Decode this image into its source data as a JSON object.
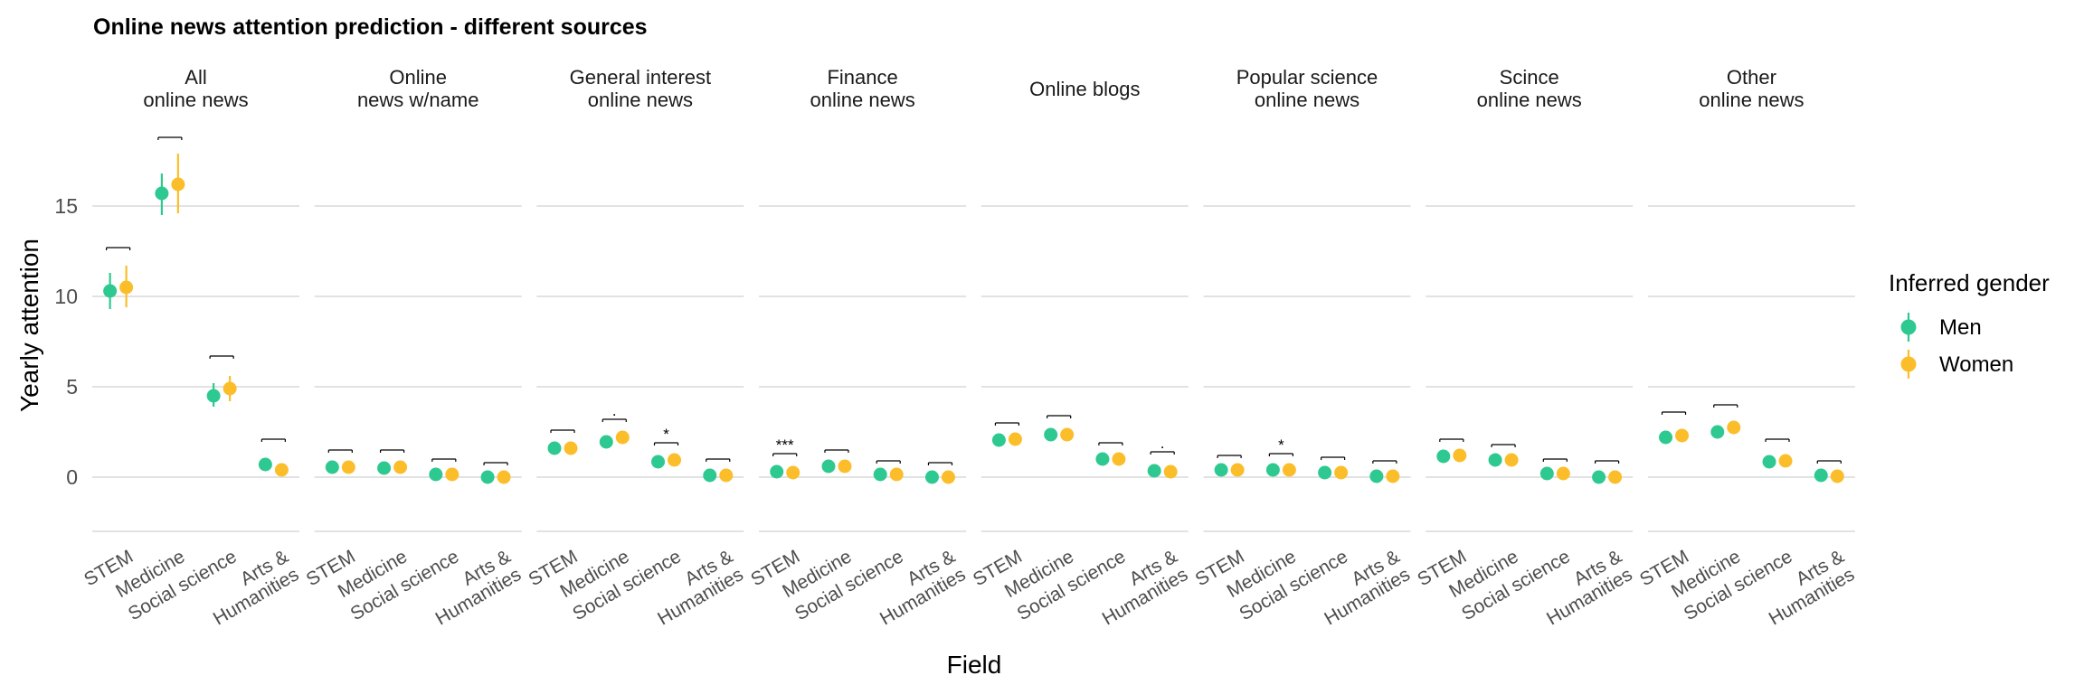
{
  "chart_data": {
    "type": "scatter",
    "title": "Online news attention prediction - different sources",
    "xlabel": "Field",
    "ylabel": "Yearly attention",
    "ylim": [
      -3,
      19.5
    ],
    "yticks": [
      0,
      5,
      10,
      15
    ],
    "grid": true,
    "legend": {
      "title": "Inferred gender",
      "placement": "right",
      "entries": [
        {
          "name": "Men",
          "color": "#2ec990"
        },
        {
          "name": "Women",
          "color": "#fbbe2a"
        }
      ]
    },
    "categories": [
      "STEM",
      "Medicine",
      "Social science",
      "Arts & Humanities"
    ],
    "category_lines": [
      [
        "STEM"
      ],
      [
        "Medicine"
      ],
      [
        "Social science"
      ],
      [
        "Arts &",
        "Humanities"
      ]
    ],
    "panels": [
      {
        "title_lines": [
          "All",
          "online news"
        ],
        "men": [
          {
            "y": 10.3,
            "lo": 9.3,
            "hi": 11.3
          },
          {
            "y": 15.7,
            "lo": 14.5,
            "hi": 16.8
          },
          {
            "y": 4.5,
            "lo": 3.9,
            "hi": 5.2
          },
          {
            "y": 0.7,
            "lo": 0.5,
            "hi": 0.9
          }
        ],
        "women": [
          {
            "y": 10.5,
            "lo": 9.4,
            "hi": 11.7
          },
          {
            "y": 16.2,
            "lo": 14.6,
            "hi": 17.9
          },
          {
            "y": 4.9,
            "lo": 4.2,
            "hi": 5.6
          },
          {
            "y": 0.4,
            "lo": 0.2,
            "hi": 0.6
          }
        ],
        "bracket_y": [
          12.7,
          18.8,
          6.7,
          2.1
        ],
        "sig": [
          "",
          "",
          "",
          ""
        ]
      },
      {
        "title_lines": [
          "Online",
          "news w/name"
        ],
        "men": [
          {
            "y": 0.55,
            "lo": 0.45,
            "hi": 0.65
          },
          {
            "y": 0.5,
            "lo": 0.4,
            "hi": 0.6
          },
          {
            "y": 0.15,
            "lo": 0.1,
            "hi": 0.2
          },
          {
            "y": 0.0,
            "lo": -0.05,
            "hi": 0.05
          }
        ],
        "women": [
          {
            "y": 0.55,
            "lo": 0.45,
            "hi": 0.65
          },
          {
            "y": 0.55,
            "lo": 0.45,
            "hi": 0.65
          },
          {
            "y": 0.15,
            "lo": 0.1,
            "hi": 0.2
          },
          {
            "y": 0.0,
            "lo": -0.05,
            "hi": 0.05
          }
        ],
        "bracket_y": [
          1.5,
          1.5,
          1.0,
          0.8
        ],
        "sig": [
          "",
          "",
          "",
          ""
        ]
      },
      {
        "title_lines": [
          "General interest",
          "online news"
        ],
        "men": [
          {
            "y": 1.6,
            "lo": 1.45,
            "hi": 1.75
          },
          {
            "y": 1.95,
            "lo": 1.8,
            "hi": 2.1
          },
          {
            "y": 0.85,
            "lo": 0.75,
            "hi": 0.95
          },
          {
            "y": 0.1,
            "lo": 0.05,
            "hi": 0.15
          }
        ],
        "women": [
          {
            "y": 1.6,
            "lo": 1.45,
            "hi": 1.75
          },
          {
            "y": 2.2,
            "lo": 2.0,
            "hi": 2.4
          },
          {
            "y": 0.95,
            "lo": 0.85,
            "hi": 1.05
          },
          {
            "y": 0.1,
            "lo": 0.05,
            "hi": 0.15
          }
        ],
        "bracket_y": [
          2.6,
          3.2,
          1.9,
          1.0
        ],
        "sig": [
          "",
          ".",
          "*",
          ""
        ]
      },
      {
        "title_lines": [
          "Finance",
          "online news"
        ],
        "men": [
          {
            "y": 0.3,
            "lo": 0.25,
            "hi": 0.35
          },
          {
            "y": 0.6,
            "lo": 0.5,
            "hi": 0.7
          },
          {
            "y": 0.15,
            "lo": 0.1,
            "hi": 0.2
          },
          {
            "y": 0.0,
            "lo": -0.05,
            "hi": 0.05
          }
        ],
        "women": [
          {
            "y": 0.25,
            "lo": 0.2,
            "hi": 0.3
          },
          {
            "y": 0.6,
            "lo": 0.5,
            "hi": 0.7
          },
          {
            "y": 0.15,
            "lo": 0.1,
            "hi": 0.2
          },
          {
            "y": 0.0,
            "lo": -0.05,
            "hi": 0.05
          }
        ],
        "bracket_y": [
          1.3,
          1.5,
          0.9,
          0.8
        ],
        "sig": [
          "***",
          "",
          "",
          ""
        ]
      },
      {
        "title_lines": [
          "Online blogs"
        ],
        "men": [
          {
            "y": 2.05,
            "lo": 1.9,
            "hi": 2.2
          },
          {
            "y": 2.35,
            "lo": 2.2,
            "hi": 2.5
          },
          {
            "y": 1.0,
            "lo": 0.9,
            "hi": 1.1
          },
          {
            "y": 0.35,
            "lo": 0.3,
            "hi": 0.4
          }
        ],
        "women": [
          {
            "y": 2.1,
            "lo": 1.95,
            "hi": 2.25
          },
          {
            "y": 2.35,
            "lo": 2.2,
            "hi": 2.5
          },
          {
            "y": 1.0,
            "lo": 0.9,
            "hi": 1.1
          },
          {
            "y": 0.3,
            "lo": 0.25,
            "hi": 0.35
          }
        ],
        "bracket_y": [
          3.0,
          3.4,
          1.9,
          1.4
        ],
        "sig": [
          "",
          "",
          "",
          "."
        ]
      },
      {
        "title_lines": [
          "Popular science",
          "online news"
        ],
        "men": [
          {
            "y": 0.4,
            "lo": 0.35,
            "hi": 0.45
          },
          {
            "y": 0.4,
            "lo": 0.35,
            "hi": 0.45
          },
          {
            "y": 0.25,
            "lo": 0.2,
            "hi": 0.3
          },
          {
            "y": 0.05,
            "lo": 0.0,
            "hi": 0.1
          }
        ],
        "women": [
          {
            "y": 0.4,
            "lo": 0.35,
            "hi": 0.45
          },
          {
            "y": 0.4,
            "lo": 0.35,
            "hi": 0.45
          },
          {
            "y": 0.25,
            "lo": 0.2,
            "hi": 0.3
          },
          {
            "y": 0.05,
            "lo": 0.0,
            "hi": 0.1
          }
        ],
        "bracket_y": [
          1.2,
          1.3,
          1.1,
          0.9
        ],
        "sig": [
          "",
          "*",
          "",
          ""
        ]
      },
      {
        "title_lines": [
          "Scince",
          "online news"
        ],
        "men": [
          {
            "y": 1.15,
            "lo": 1.05,
            "hi": 1.25
          },
          {
            "y": 0.95,
            "lo": 0.85,
            "hi": 1.05
          },
          {
            "y": 0.2,
            "lo": 0.15,
            "hi": 0.25
          },
          {
            "y": 0.0,
            "lo": -0.05,
            "hi": 0.05
          }
        ],
        "women": [
          {
            "y": 1.2,
            "lo": 1.1,
            "hi": 1.3
          },
          {
            "y": 0.95,
            "lo": 0.85,
            "hi": 1.05
          },
          {
            "y": 0.2,
            "lo": 0.15,
            "hi": 0.25
          },
          {
            "y": 0.0,
            "lo": -0.05,
            "hi": 0.05
          }
        ],
        "bracket_y": [
          2.1,
          1.8,
          1.0,
          0.9
        ],
        "sig": [
          "",
          "",
          "",
          ""
        ]
      },
      {
        "title_lines": [
          "Other",
          "online news"
        ],
        "men": [
          {
            "y": 2.2,
            "lo": 2.05,
            "hi": 2.35
          },
          {
            "y": 2.5,
            "lo": 2.35,
            "hi": 2.65
          },
          {
            "y": 0.85,
            "lo": 0.75,
            "hi": 0.95
          },
          {
            "y": 0.1,
            "lo": 0.05,
            "hi": 0.15
          }
        ],
        "women": [
          {
            "y": 2.3,
            "lo": 2.1,
            "hi": 2.5
          },
          {
            "y": 2.75,
            "lo": 2.5,
            "hi": 3.0
          },
          {
            "y": 0.9,
            "lo": 0.8,
            "hi": 1.0
          },
          {
            "y": 0.05,
            "lo": 0.0,
            "hi": 0.1
          }
        ],
        "bracket_y": [
          3.6,
          4.0,
          2.1,
          0.9
        ],
        "sig": [
          "",
          "",
          "",
          ""
        ]
      }
    ]
  }
}
